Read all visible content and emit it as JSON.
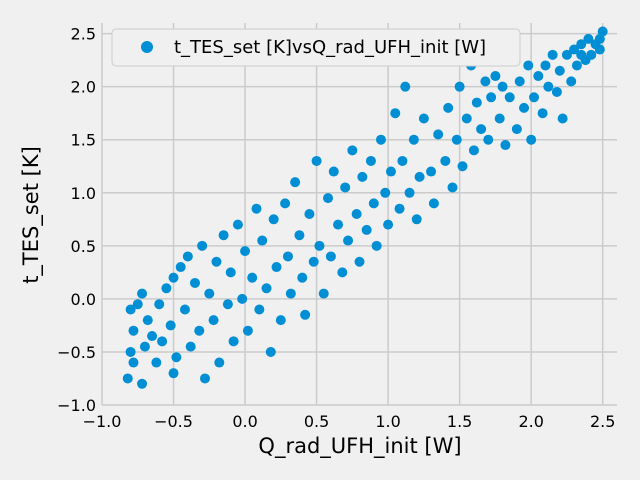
{
  "chart_data": {
    "type": "scatter",
    "title": "",
    "xlabel": "Q_rad_UFH_init [W]",
    "ylabel": "t_TES_set [K]",
    "xlim": [
      -1.0,
      2.6
    ],
    "ylim": [
      -1.0,
      2.6
    ],
    "x_ticks": [
      -1.0,
      -0.5,
      0.0,
      0.5,
      1.0,
      1.5,
      2.0,
      2.5
    ],
    "x_tick_labels": [
      "−1.0",
      "−0.5",
      "0.0",
      "0.5",
      "1.0",
      "1.5",
      "2.0",
      "2.5"
    ],
    "y_ticks": [
      -1.0,
      -0.5,
      0.0,
      0.5,
      1.0,
      1.5,
      2.0,
      2.5
    ],
    "y_tick_labels": [
      "−1.0",
      "−0.5",
      "0.0",
      "0.5",
      "1.0",
      "1.5",
      "2.0",
      "2.5"
    ],
    "grid": true,
    "legend_position": "top-left",
    "style": {
      "background": "#f0f0f0",
      "grid_color": "#cbcbcb",
      "marker_color": "#008fd5"
    },
    "series": [
      {
        "name": "t_TES_set [K]vsQ_rad_UFH_init [W]",
        "color": "#008fd5",
        "points": [
          [
            -0.82,
            -0.75
          ],
          [
            -0.8,
            -0.5
          ],
          [
            -0.78,
            -0.3
          ],
          [
            -0.8,
            -0.1
          ],
          [
            -0.75,
            -0.05
          ],
          [
            -0.78,
            -0.6
          ],
          [
            -0.72,
            -0.8
          ],
          [
            -0.7,
            -0.45
          ],
          [
            -0.68,
            -0.2
          ],
          [
            -0.72,
            0.05
          ],
          [
            -0.65,
            -0.35
          ],
          [
            -0.62,
            -0.6
          ],
          [
            -0.6,
            -0.05
          ],
          [
            -0.58,
            -0.4
          ],
          [
            -0.55,
            0.1
          ],
          [
            -0.52,
            -0.25
          ],
          [
            -0.5,
            -0.7
          ],
          [
            -0.5,
            0.2
          ],
          [
            -0.48,
            -0.55
          ],
          [
            -0.45,
            0.3
          ],
          [
            -0.42,
            -0.1
          ],
          [
            -0.4,
            0.4
          ],
          [
            -0.38,
            -0.45
          ],
          [
            -0.35,
            0.15
          ],
          [
            -0.32,
            -0.3
          ],
          [
            -0.3,
            0.5
          ],
          [
            -0.28,
            -0.75
          ],
          [
            -0.25,
            0.05
          ],
          [
            -0.22,
            -0.2
          ],
          [
            -0.2,
            0.35
          ],
          [
            -0.18,
            -0.6
          ],
          [
            -0.15,
            0.6
          ],
          [
            -0.12,
            -0.05
          ],
          [
            -0.1,
            0.25
          ],
          [
            -0.08,
            -0.4
          ],
          [
            -0.05,
            0.7
          ],
          [
            -0.02,
            0.0
          ],
          [
            0.0,
            0.45
          ],
          [
            0.02,
            -0.3
          ],
          [
            0.05,
            0.2
          ],
          [
            0.08,
            0.85
          ],
          [
            0.1,
            -0.1
          ],
          [
            0.12,
            0.55
          ],
          [
            0.15,
            0.1
          ],
          [
            0.18,
            -0.5
          ],
          [
            0.2,
            0.75
          ],
          [
            0.22,
            0.3
          ],
          [
            0.25,
            -0.2
          ],
          [
            0.28,
            0.9
          ],
          [
            0.3,
            0.4
          ],
          [
            0.32,
            0.05
          ],
          [
            0.35,
            1.1
          ],
          [
            0.38,
            0.6
          ],
          [
            0.4,
            0.2
          ],
          [
            0.42,
            -0.15
          ],
          [
            0.45,
            0.8
          ],
          [
            0.48,
            0.35
          ],
          [
            0.5,
            1.3
          ],
          [
            0.52,
            0.5
          ],
          [
            0.55,
            0.05
          ],
          [
            0.58,
            0.95
          ],
          [
            0.6,
            0.4
          ],
          [
            0.62,
            1.2
          ],
          [
            0.65,
            0.7
          ],
          [
            0.68,
            0.25
          ],
          [
            0.7,
            1.05
          ],
          [
            0.72,
            0.55
          ],
          [
            0.75,
            1.4
          ],
          [
            0.78,
            0.8
          ],
          [
            0.8,
            0.35
          ],
          [
            0.82,
            1.15
          ],
          [
            0.85,
            0.65
          ],
          [
            0.88,
            1.3
          ],
          [
            0.9,
            0.9
          ],
          [
            0.92,
            0.5
          ],
          [
            0.95,
            1.5
          ],
          [
            0.98,
            1.0
          ],
          [
            1.0,
            0.7
          ],
          [
            1.02,
            1.2
          ],
          [
            1.05,
            1.75
          ],
          [
            1.08,
            0.85
          ],
          [
            1.1,
            1.3
          ],
          [
            1.12,
            2.0
          ],
          [
            1.15,
            1.0
          ],
          [
            1.18,
            1.5
          ],
          [
            1.2,
            0.75
          ],
          [
            1.22,
            1.15
          ],
          [
            1.25,
            1.7
          ],
          [
            1.28,
            2.25
          ],
          [
            1.3,
            1.2
          ],
          [
            1.32,
            0.9
          ],
          [
            1.35,
            1.55
          ],
          [
            1.38,
            2.35
          ],
          [
            1.4,
            1.3
          ],
          [
            1.42,
            1.8
          ],
          [
            1.45,
            1.05
          ],
          [
            1.48,
            1.5
          ],
          [
            1.5,
            2.0
          ],
          [
            1.52,
            1.25
          ],
          [
            1.55,
            1.7
          ],
          [
            1.58,
            2.2
          ],
          [
            1.6,
            1.4
          ],
          [
            1.62,
            1.85
          ],
          [
            1.65,
            1.6
          ],
          [
            1.68,
            2.05
          ],
          [
            1.7,
            1.5
          ],
          [
            1.72,
            1.9
          ],
          [
            1.75,
            2.1
          ],
          [
            1.78,
            1.7
          ],
          [
            1.8,
            2.0
          ],
          [
            1.82,
            1.45
          ],
          [
            1.85,
            1.9
          ],
          [
            1.88,
            2.25
          ],
          [
            1.9,
            1.6
          ],
          [
            1.92,
            2.05
          ],
          [
            1.95,
            1.8
          ],
          [
            1.98,
            2.2
          ],
          [
            2.0,
            1.5
          ],
          [
            2.02,
            1.9
          ],
          [
            2.05,
            2.1
          ],
          [
            2.08,
            1.75
          ],
          [
            2.1,
            2.2
          ],
          [
            2.12,
            2.0
          ],
          [
            2.15,
            2.3
          ],
          [
            2.18,
            1.95
          ],
          [
            2.2,
            2.15
          ],
          [
            2.22,
            1.7
          ],
          [
            2.25,
            2.3
          ],
          [
            2.28,
            2.05
          ],
          [
            2.3,
            2.35
          ],
          [
            2.32,
            2.2
          ],
          [
            2.35,
            2.4
          ],
          [
            2.38,
            2.25
          ],
          [
            2.4,
            2.45
          ],
          [
            2.42,
            2.3
          ],
          [
            2.45,
            2.4
          ],
          [
            2.48,
            2.35
          ],
          [
            2.5,
            2.52
          ],
          [
            2.48,
            2.45
          ],
          [
            2.35,
            2.3
          ]
        ]
      }
    ]
  }
}
